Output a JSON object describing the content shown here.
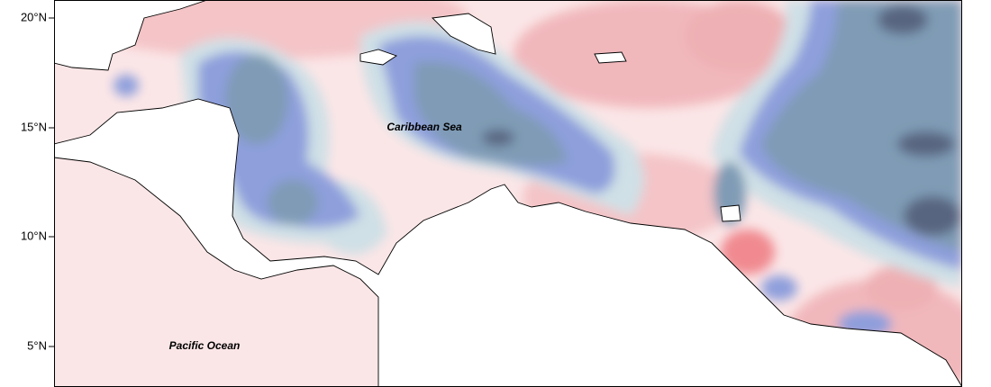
{
  "map": {
    "latitude_labels": [
      "20°N",
      "15°N",
      "10°N",
      "5°N"
    ],
    "labels": [
      "Caribbean Sea",
      "Pacific Ocean"
    ]
  }
}
